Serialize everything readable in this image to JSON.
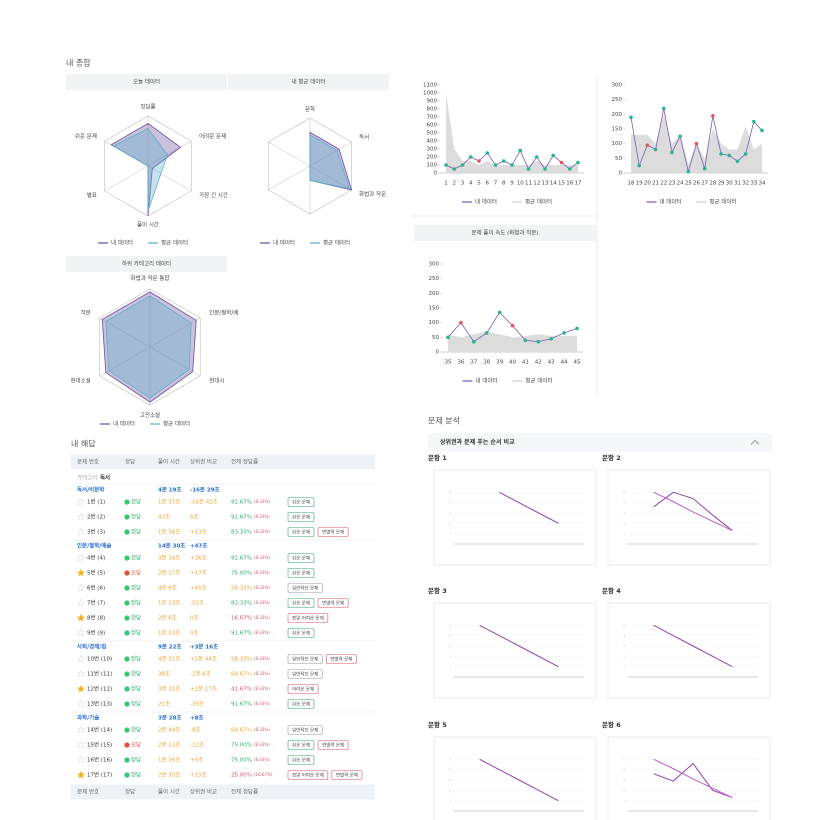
{
  "summary": {
    "title": "내 종합"
  },
  "chart_data": [
    {
      "type": "radar",
      "title": "오늘 데이터",
      "categories": [
        "정답률",
        "어려운 문제",
        "가장 긴 시간",
        "풀이 시간",
        "별표",
        "쉬운 문제"
      ],
      "rlim": [
        0,
        100
      ],
      "series": [
        {
          "name": "내 데이터",
          "color": "#6a4c9c",
          "values": [
            85,
            75,
            10,
            100,
            0,
            85
          ]
        },
        {
          "name": "평균 데이터",
          "color": "#5aaecb",
          "values": [
            75,
            45,
            30,
            90,
            0,
            80
          ]
        }
      ]
    },
    {
      "type": "radar",
      "title": "내 평균 데이터",
      "categories": [
        "문학",
        "독서",
        "화법과 작문",
        null,
        null,
        null
      ],
      "rlim": [
        0,
        100
      ],
      "series": [
        {
          "name": "내 데이터",
          "color": "#6a4c9c",
          "values": [
            70,
            70,
            100,
            30,
            0,
            0
          ]
        },
        {
          "name": "평균 데이터",
          "color": "#5aaecb",
          "values": [
            65,
            65,
            95,
            30,
            0,
            0
          ]
        }
      ]
    },
    {
      "type": "radar",
      "title": "하위 카테고리 데이터",
      "categories": [
        "화법과 작문 통합",
        "인문/철학/예",
        "현대시",
        "고전소설",
        "현대소설",
        "작문"
      ],
      "rlim": [
        0,
        100
      ],
      "series": [
        {
          "name": "내 데이터",
          "color": "#6a4c9c",
          "values": [
            95,
            92,
            85,
            95,
            88,
            95
          ]
        },
        {
          "name": "평균 데이터",
          "color": "#5aaecb",
          "values": [
            88,
            82,
            78,
            88,
            82,
            88
          ]
        }
      ]
    },
    {
      "type": "line",
      "x": [
        1,
        2,
        3,
        4,
        5,
        6,
        7,
        8,
        9,
        10,
        11,
        12,
        13,
        14,
        15,
        16,
        17
      ],
      "xlim": [
        1,
        17
      ],
      "ylim": [
        0,
        1100
      ],
      "yticks": [
        0,
        100,
        200,
        300,
        400,
        500,
        600,
        700,
        800,
        900,
        1000,
        1100
      ],
      "grid": false,
      "series": [
        {
          "name": "내 데이터",
          "color": "#7b5bb5",
          "style": "line",
          "values": [
            100,
            50,
            100,
            200,
            150,
            250,
            100,
            150,
            100,
            280,
            50,
            200,
            50,
            220,
            130,
            50,
            130
          ],
          "point_colors": [
            "#27b394",
            "#27b394",
            "#27b394",
            "#27b394",
            "#e0555f",
            "#27b394",
            "#27b394",
            "#27b394",
            "#27b394",
            "#27b394",
            "#27b394",
            "#27b394",
            "#27b394",
            "#27b394",
            "#e0555f",
            "#27b394",
            "#27b394"
          ]
        },
        {
          "name": "평균 데이터",
          "color": "#dcdcdc",
          "style": "area",
          "values": [
            1000,
            300,
            150,
            150,
            100,
            150,
            100,
            100,
            100,
            100,
            100,
            150,
            100,
            100,
            100,
            100,
            100
          ]
        }
      ]
    },
    {
      "type": "line",
      "x": [
        18,
        19,
        20,
        21,
        22,
        23,
        24,
        25,
        26,
        27,
        28,
        29,
        30,
        31,
        32,
        33,
        34
      ],
      "xlim": [
        18,
        34
      ],
      "ylim": [
        0,
        300
      ],
      "yticks": [
        0,
        50,
        100,
        150,
        200,
        250,
        300
      ],
      "grid": false,
      "series": [
        {
          "name": "내 데이터",
          "color": "#7b5bb5",
          "style": "line",
          "values": [
            190,
            25,
            95,
            80,
            220,
            70,
            125,
            5,
            100,
            15,
            195,
            65,
            60,
            40,
            65,
            175,
            145
          ],
          "point_colors": [
            "#27b394",
            "#27b394",
            "#e0555f",
            "#27b394",
            "#27b394",
            "#27b394",
            "#27b394",
            "#27b394",
            "#e0555f",
            "#27b394",
            "#e0555f",
            "#27b394",
            "#27b394",
            "#27b394",
            "#27b394",
            "#27b394",
            "#27b394"
          ]
        },
        {
          "name": "평균 데이터",
          "color": "#dcdcdc",
          "style": "area",
          "values": [
            130,
            130,
            130,
            100,
            200,
            100,
            130,
            30,
            100,
            50,
            150,
            100,
            80,
            80,
            160,
            80,
            100
          ]
        }
      ]
    },
    {
      "type": "line",
      "title": "문제 풀이 속도 (화법과 작문)",
      "x": [
        35,
        36,
        37,
        38,
        39,
        40,
        41,
        42,
        43,
        44,
        45
      ],
      "xlim": [
        35,
        45
      ],
      "ylim": [
        0,
        300
      ],
      "yticks": [
        0,
        50,
        100,
        150,
        200,
        250,
        300
      ],
      "grid": false,
      "series": [
        {
          "name": "내 데이터",
          "color": "#7b5bb5",
          "style": "line",
          "values": [
            50,
            100,
            35,
            65,
            135,
            90,
            40,
            35,
            45,
            65,
            80
          ],
          "point_colors": [
            "#27b394",
            "#e0555f",
            "#27b394",
            "#27b394",
            "#27b394",
            "#e0555f",
            "#27b394",
            "#27b394",
            "#27b394",
            "#27b394",
            "#27b394"
          ]
        },
        {
          "name": "평균 데이터",
          "color": "#dcdcdc",
          "style": "area",
          "values": [
            60,
            50,
            60,
            70,
            60,
            50,
            55,
            60,
            55,
            55,
            55
          ]
        }
      ]
    },
    {
      "type": "line",
      "title": "문항 1",
      "x": [
        1,
        2,
        3,
        4,
        5
      ],
      "xlim": [
        0,
        6
      ],
      "ylim": [
        0,
        6
      ],
      "yticks": [
        1,
        2,
        3,
        4,
        5
      ],
      "grid": true,
      "series": [
        {
          "color": "#8e44ad",
          "style": "line",
          "values": [
            null,
            5,
            4,
            3,
            2
          ]
        }
      ]
    },
    {
      "type": "line",
      "title": "문항 2",
      "x": [
        1,
        2,
        3,
        4,
        5
      ],
      "xlim": [
        0,
        6
      ],
      "ylim": [
        0,
        6
      ],
      "yticks": [
        1,
        2,
        3,
        4,
        5
      ],
      "grid": true,
      "series": [
        {
          "color": "#8e44ad",
          "style": "line",
          "values": [
            3.6,
            5,
            4.4,
            2.8,
            1.3
          ]
        },
        {
          "color": "#c05cc8",
          "style": "line",
          "values": [
            5,
            4.1,
            3.1,
            2.2,
            1.3
          ]
        }
      ]
    },
    {
      "type": "line",
      "title": "문항 3",
      "x": [
        1,
        2,
        3,
        4,
        5
      ],
      "xlim": [
        0,
        6
      ],
      "ylim": [
        0,
        6
      ],
      "yticks": [
        1,
        2,
        3,
        4,
        5
      ],
      "grid": true,
      "series": [
        {
          "color": "#8e44ad",
          "style": "line",
          "values": [
            5,
            4,
            3,
            2,
            1
          ]
        }
      ]
    },
    {
      "type": "line",
      "title": "문항 4",
      "x": [
        1,
        2,
        3,
        4,
        5
      ],
      "xlim": [
        0,
        6
      ],
      "ylim": [
        0,
        6
      ],
      "yticks": [
        1,
        2,
        3,
        4,
        5
      ],
      "grid": true,
      "series": [
        {
          "color": "#8e44ad",
          "style": "line",
          "values": [
            5,
            4,
            3,
            2,
            1
          ]
        }
      ]
    },
    {
      "type": "line",
      "title": "문항 5",
      "x": [
        1,
        2,
        3,
        4,
        5
      ],
      "xlim": [
        0,
        6
      ],
      "ylim": [
        0,
        6
      ],
      "yticks": [
        1,
        2,
        3,
        4,
        5
      ],
      "grid": true,
      "series": [
        {
          "color": "#8e44ad",
          "style": "line",
          "values": [
            5,
            4,
            3,
            2,
            1
          ]
        }
      ]
    },
    {
      "type": "line",
      "title": "문항 6",
      "x": [
        1,
        2,
        3,
        4,
        5
      ],
      "xlim": [
        0,
        6
      ],
      "ylim": [
        0,
        6
      ],
      "yticks": [
        1,
        2,
        3,
        4,
        5
      ],
      "grid": true,
      "series": [
        {
          "color": "#8e44ad",
          "style": "line",
          "values": [
            3.6,
            2.9,
            4.6,
            2,
            1.3
          ]
        },
        {
          "color": "#c05cc8",
          "style": "line",
          "values": [
            5,
            4.1,
            3.1,
            2.2,
            1.3
          ]
        }
      ]
    }
  ],
  "answers": {
    "title": "내 해답",
    "columns": [
      "문제 번호",
      "정답",
      "풀이 시간",
      "상위권 비교",
      "전체 정답률"
    ],
    "category_label": "카테고리",
    "category": "독서",
    "groups": [
      {
        "name": "독서/비문학",
        "time": "4분 19초",
        "compare": "-16분 29초",
        "rows": [
          {
            "no": "1번 (1)",
            "starred": false,
            "result": "정답",
            "correct": true,
            "time": "1분 37초",
            "compare": "-16분 42초",
            "rate": "91.67%",
            "rate_sub": "(8.33%)",
            "rate_color": "#2eaa6a",
            "tags": [
              {
                "text": "쉬운 문제",
                "color": "#2eaa6a"
              }
            ]
          },
          {
            "no": "2번 (2)",
            "starred": false,
            "result": "정답",
            "correct": true,
            "time": "43초",
            "compare": "6초",
            "rate": "91.67%",
            "rate_sub": "(8.33%)",
            "rate_color": "#2eaa6a",
            "tags": [
              {
                "text": "쉬운 문제",
                "color": "#2eaa6a"
              }
            ]
          },
          {
            "no": "3번 (3)",
            "starred": false,
            "result": "정답",
            "correct": true,
            "time": "1분 58초",
            "compare": "+13초",
            "rate": "83.33%",
            "rate_sub": "(8.33%)",
            "rate_color": "#2eaa6a",
            "tags": [
              {
                "text": "쉬운 문제",
                "color": "#2eaa6a"
              },
              {
                "text": "변별력 문제",
                "color": "#e0555f"
              }
            ]
          }
        ]
      },
      {
        "name": "인문/철학/예술",
        "time": "14분 30초",
        "compare": "+47초",
        "rows": [
          {
            "no": "4번 (4)",
            "starred": false,
            "result": "정답",
            "correct": true,
            "time": "3분 16초",
            "compare": "+36초",
            "rate": "91.67%",
            "rate_sub": "(8.33%)",
            "rate_color": "#2eaa6a",
            "tags": [
              {
                "text": "쉬운 문제",
                "color": "#2eaa6a"
              }
            ]
          },
          {
            "no": "5번 (5)",
            "starred": true,
            "result": "오답",
            "correct": false,
            "time": "2분 27초",
            "compare": "+17초",
            "rate": "75.00%",
            "rate_sub": "(8.33%)",
            "rate_color": "#2eaa6a",
            "tags": [
              {
                "text": "쉬운 문제",
                "color": "#2eaa6a"
              }
            ]
          },
          {
            "no": "6번 (6)",
            "starred": false,
            "result": "정답",
            "correct": true,
            "time": "4분 6초",
            "compare": "+45초",
            "rate": "58.33%",
            "rate_sub": "(8.33%)",
            "rate_color": "#f0a030",
            "tags": [
              {
                "text": "일반적인 문제",
                "color": "#999999"
              }
            ]
          },
          {
            "no": "7번 (7)",
            "starred": false,
            "result": "정답",
            "correct": true,
            "time": "1분 13초",
            "compare": "-51초",
            "rate": "83.33%",
            "rate_sub": "(8.33%)",
            "rate_color": "#2eaa6a",
            "tags": [
              {
                "text": "쉬운 문제",
                "color": "#2eaa6a"
              },
              {
                "text": "변별력 문제",
                "color": "#e0555f"
              }
            ]
          },
          {
            "no": "8번 (8)",
            "starred": true,
            "result": "정답",
            "correct": true,
            "time": "2분 6초",
            "compare": "0초",
            "rate": "16.67%",
            "rate_sub": "(8.33%)",
            "rate_color": "#e0555f",
            "tags": [
              {
                "text": "정말 어려운 문제",
                "color": "#e0555f"
              }
            ]
          },
          {
            "no": "9번 (9)",
            "starred": false,
            "result": "정답",
            "correct": true,
            "time": "1분 23초",
            "compare": "0초",
            "rate": "91.67%",
            "rate_sub": "(8.33%)",
            "rate_color": "#2eaa6a",
            "tags": [
              {
                "text": "쉬운 문제",
                "color": "#2eaa6a"
              }
            ]
          }
        ]
      },
      {
        "name": "사회/경제/법",
        "time": "9분 22초",
        "compare": "+3분 16초",
        "rows": [
          {
            "no": "10번 (10)",
            "starred": false,
            "result": "정답",
            "correct": true,
            "time": "4분 51초",
            "compare": "+2분 44초",
            "rate": "58.33%",
            "rate_sub": "(8.33%)",
            "rate_color": "#f0a030",
            "tags": [
              {
                "text": "일반적인 문제",
                "color": "#999999"
              },
              {
                "text": "변별력 문제",
                "color": "#e0555f"
              }
            ]
          },
          {
            "no": "11번 (11)",
            "starred": false,
            "result": "정답",
            "correct": true,
            "time": "38초",
            "compare": "-1분 6초",
            "rate": "66.67%",
            "rate_sub": "(8.33%)",
            "rate_color": "#f0a030",
            "tags": [
              {
                "text": "일반적인 문제",
                "color": "#999999"
              }
            ]
          },
          {
            "no": "12번 (12)",
            "starred": true,
            "result": "정답",
            "correct": true,
            "time": "3분 31초",
            "compare": "+2분 17초",
            "rate": "41.67%",
            "rate_sub": "(8.33%)",
            "rate_color": "#e0555f",
            "tags": [
              {
                "text": "어려운 문제",
                "color": "#e0555f"
              }
            ]
          },
          {
            "no": "13번 (13)",
            "starred": false,
            "result": "정답",
            "correct": true,
            "time": "21초",
            "compare": "-35초",
            "rate": "91.67%",
            "rate_sub": "(8.33%)",
            "rate_color": "#2eaa6a",
            "tags": [
              {
                "text": "쉬운 문제",
                "color": "#2eaa6a"
              }
            ]
          }
        ]
      },
      {
        "name": "과학/기술",
        "time": "3분 28초",
        "compare": "+8초",
        "rows": [
          {
            "no": "14번 (14)",
            "starred": false,
            "result": "정답",
            "correct": true,
            "time": "2분 44초",
            "compare": "-8초",
            "rate": "66.67%",
            "rate_sub": "(8.33%)",
            "rate_color": "#f0a030",
            "tags": [
              {
                "text": "일반적인 문제",
                "color": "#999999"
              }
            ]
          },
          {
            "no": "15번 (15)",
            "starred": false,
            "result": "오답",
            "correct": false,
            "time": "2분 13초",
            "compare": "-12초",
            "rate": "75.00%",
            "rate_sub": "(8.33%)",
            "rate_color": "#2eaa6a",
            "tags": [
              {
                "text": "쉬운 문제",
                "color": "#2eaa6a"
              },
              {
                "text": "변별력 문제",
                "color": "#e0555f"
              }
            ]
          },
          {
            "no": "16번 (16)",
            "starred": false,
            "result": "정답",
            "correct": true,
            "time": "1분 16초",
            "compare": "+5초",
            "rate": "75.00%",
            "rate_sub": "(8.33%)",
            "rate_color": "#2eaa6a",
            "tags": [
              {
                "text": "쉬운 문제",
                "color": "#2eaa6a"
              }
            ]
          },
          {
            "no": "17번 (17)",
            "starred": true,
            "result": "정답",
            "correct": true,
            "time": "2분 35초",
            "compare": "+15초",
            "rate": "25.00%",
            "rate_sub": "(16.67%)",
            "rate_color": "#e0555f",
            "tags": [
              {
                "text": "정말 어려운 문제",
                "color": "#e0555f"
              },
              {
                "text": "변별력 문제",
                "color": "#e0555f"
              }
            ]
          }
        ]
      }
    ]
  },
  "analysis": {
    "title": "문제 분석",
    "section": "상위권과 문제 푸는 순서 비교"
  }
}
